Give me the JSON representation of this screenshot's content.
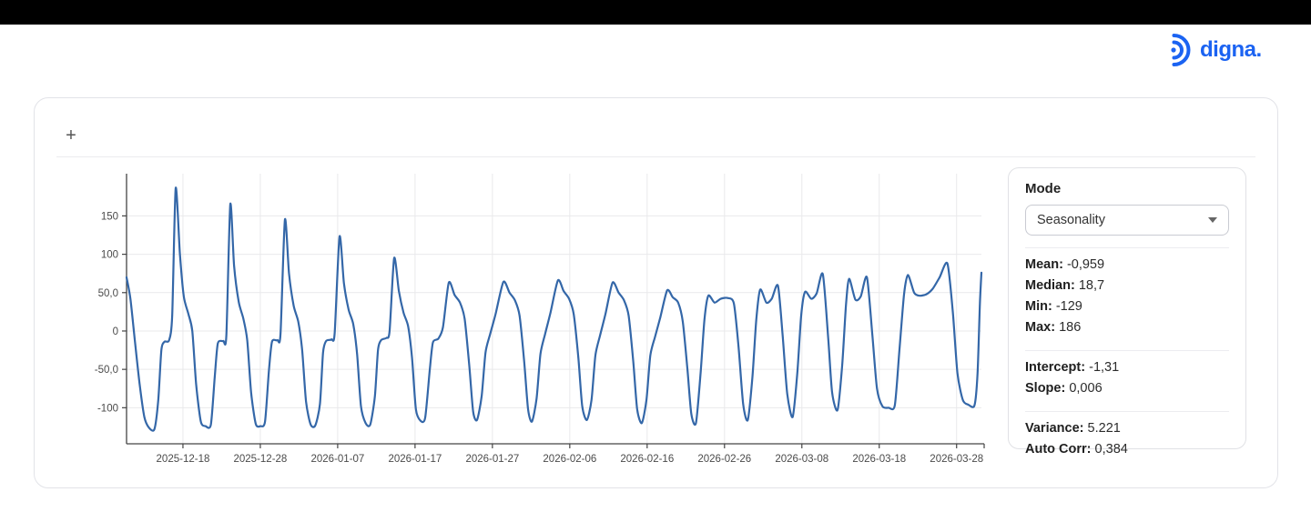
{
  "page": {
    "top_bar_color": "#000000",
    "background": "#ffffff"
  },
  "brand": {
    "name": "digna.",
    "color": "#1b63f2",
    "icon": "ripple-arcs-icon"
  },
  "card": {
    "expand_button_label": "+"
  },
  "panel": {
    "mode_label": "Mode",
    "mode_select_value": "Seasonality",
    "stats_groups": [
      [
        {
          "label": "Mean:",
          "value": "-0,959"
        },
        {
          "label": "Median:",
          "value": "18,7"
        },
        {
          "label": "Min:",
          "value": "-129"
        },
        {
          "label": "Max:",
          "value": "186"
        }
      ],
      [
        {
          "label": "Intercept:",
          "value": "-1,31"
        },
        {
          "label": "Slope:",
          "value": "0,006"
        }
      ],
      [
        {
          "label": "Variance:",
          "value": "5.221"
        },
        {
          "label": "Auto Corr:",
          "value": "0,384"
        }
      ]
    ]
  },
  "chart_data": {
    "type": "line",
    "title": "",
    "xlabel": "",
    "ylabel": "",
    "legend": "none",
    "grid": true,
    "line_color": "#3467a8",
    "axis_color": "#444444",
    "grid_color": "#e9e9eb",
    "tick_label_color": "#4a4a4a",
    "x_unit": "days from plot start (≈ 2025-12-11), daily series with weekly seasonality",
    "x_range": [
      0,
      110.5
    ],
    "y_range": [
      -147,
      205
    ],
    "x_ticks": [
      {
        "t": 7.29,
        "label": "2025-12-18"
      },
      {
        "t": 17.29,
        "label": "2025-12-28"
      },
      {
        "t": 27.29,
        "label": "2026-01-07"
      },
      {
        "t": 37.29,
        "label": "2026-01-17"
      },
      {
        "t": 47.29,
        "label": "2026-01-27"
      },
      {
        "t": 57.29,
        "label": "2026-02-06"
      },
      {
        "t": 67.29,
        "label": "2026-02-16"
      },
      {
        "t": 77.29,
        "label": "2026-02-26"
      },
      {
        "t": 87.29,
        "label": "2026-03-08"
      },
      {
        "t": 97.29,
        "label": "2026-03-18"
      },
      {
        "t": 107.29,
        "label": "2026-03-28"
      }
    ],
    "y_ticks": [
      {
        "v": 150,
        "label": "150"
      },
      {
        "v": 100,
        "label": "100"
      },
      {
        "v": 50,
        "label": "50,0"
      },
      {
        "v": 0,
        "label": "0"
      },
      {
        "v": -50,
        "label": "-50,0"
      },
      {
        "v": -100,
        "label": "-100"
      }
    ],
    "series": [
      {
        "name": "seasonality",
        "points": [
          [
            0,
            70
          ],
          [
            0.5,
            42
          ],
          [
            1.1,
            -15
          ],
          [
            1.7,
            -70
          ],
          [
            2.3,
            -112
          ],
          [
            2.9,
            -126
          ],
          [
            3.6,
            -128
          ],
          [
            4.1,
            -90
          ],
          [
            4.5,
            -25
          ],
          [
            4.9,
            -14
          ],
          [
            5.5,
            -12
          ],
          [
            5.9,
            20
          ],
          [
            6.35,
            186
          ],
          [
            6.9,
            100
          ],
          [
            7.4,
            45
          ],
          [
            8.0,
            22
          ],
          [
            8.5,
            0
          ],
          [
            9.0,
            -70
          ],
          [
            9.6,
            -118
          ],
          [
            10.2,
            -124
          ],
          [
            10.9,
            -122
          ],
          [
            11.4,
            -60
          ],
          [
            11.8,
            -16
          ],
          [
            12.5,
            -13
          ],
          [
            12.9,
            -6
          ],
          [
            13.41,
            165
          ],
          [
            13.9,
            85
          ],
          [
            14.5,
            38
          ],
          [
            15.1,
            16
          ],
          [
            15.6,
            -12
          ],
          [
            16.1,
            -80
          ],
          [
            16.7,
            -121
          ],
          [
            17.3,
            -124
          ],
          [
            17.9,
            -118
          ],
          [
            18.4,
            -52
          ],
          [
            18.8,
            -14
          ],
          [
            19.5,
            -12
          ],
          [
            19.9,
            -4
          ],
          [
            20.47,
            145
          ],
          [
            21.0,
            75
          ],
          [
            21.6,
            33
          ],
          [
            22.2,
            12
          ],
          [
            22.7,
            -25
          ],
          [
            23.2,
            -92
          ],
          [
            23.8,
            -122
          ],
          [
            24.4,
            -123
          ],
          [
            25.0,
            -95
          ],
          [
            25.4,
            -28
          ],
          [
            25.8,
            -13
          ],
          [
            26.5,
            -11
          ],
          [
            26.9,
            -3
          ],
          [
            27.53,
            123
          ],
          [
            28.1,
            62
          ],
          [
            28.7,
            28
          ],
          [
            29.3,
            9
          ],
          [
            29.8,
            -30
          ],
          [
            30.3,
            -98
          ],
          [
            30.9,
            -120
          ],
          [
            31.5,
            -122
          ],
          [
            32.1,
            -85
          ],
          [
            32.5,
            -25
          ],
          [
            32.9,
            -12
          ],
          [
            33.6,
            -9
          ],
          [
            34.0,
            0
          ],
          [
            34.59,
            95
          ],
          [
            35.2,
            52
          ],
          [
            35.8,
            24
          ],
          [
            36.4,
            6
          ],
          [
            36.9,
            -35
          ],
          [
            37.4,
            -102
          ],
          [
            38.0,
            -117
          ],
          [
            38.6,
            -113
          ],
          [
            39.2,
            -50
          ],
          [
            39.6,
            -15
          ],
          [
            40.3,
            -10
          ],
          [
            40.9,
            5
          ],
          [
            41.65,
            63
          ],
          [
            42.4,
            47
          ],
          [
            43.1,
            37
          ],
          [
            43.7,
            16
          ],
          [
            44.3,
            -45
          ],
          [
            44.8,
            -105
          ],
          [
            45.3,
            -116
          ],
          [
            45.9,
            -85
          ],
          [
            46.4,
            -28
          ],
          [
            47.0,
            -4
          ],
          [
            47.7,
            22
          ],
          [
            48.71,
            64
          ],
          [
            49.5,
            50
          ],
          [
            50.2,
            40
          ],
          [
            50.8,
            20
          ],
          [
            51.4,
            -40
          ],
          [
            51.9,
            -102
          ],
          [
            52.4,
            -118
          ],
          [
            53.0,
            -88
          ],
          [
            53.5,
            -30
          ],
          [
            54.1,
            -4
          ],
          [
            54.8,
            24
          ],
          [
            55.76,
            66
          ],
          [
            56.5,
            52
          ],
          [
            57.2,
            42
          ],
          [
            57.8,
            22
          ],
          [
            58.4,
            -35
          ],
          [
            58.9,
            -98
          ],
          [
            59.5,
            -116
          ],
          [
            60.1,
            -90
          ],
          [
            60.6,
            -32
          ],
          [
            61.2,
            -6
          ],
          [
            61.9,
            22
          ],
          [
            62.82,
            63
          ],
          [
            63.6,
            50
          ],
          [
            64.3,
            40
          ],
          [
            64.9,
            20
          ],
          [
            65.5,
            -40
          ],
          [
            66.0,
            -102
          ],
          [
            66.6,
            -120
          ],
          [
            67.2,
            -90
          ],
          [
            67.7,
            -32
          ],
          [
            68.3,
            -8
          ],
          [
            69.0,
            18
          ],
          [
            69.88,
            53
          ],
          [
            70.6,
            44
          ],
          [
            71.3,
            37
          ],
          [
            71.9,
            12
          ],
          [
            72.5,
            -50
          ],
          [
            73.0,
            -108
          ],
          [
            73.6,
            -120
          ],
          [
            74.2,
            -55
          ],
          [
            74.7,
            15
          ],
          [
            75.2,
            46
          ],
          [
            76.0,
            37
          ],
          [
            76.8,
            42
          ],
          [
            77.7,
            43
          ],
          [
            78.5,
            36
          ],
          [
            79.1,
            -20
          ],
          [
            79.7,
            -95
          ],
          [
            80.3,
            -116
          ],
          [
            80.9,
            -60
          ],
          [
            81.4,
            15
          ],
          [
            81.9,
            54
          ],
          [
            82.7,
            37
          ],
          [
            83.4,
            42
          ],
          [
            84.2,
            59
          ],
          [
            84.8,
            -5
          ],
          [
            85.4,
            -82
          ],
          [
            86.1,
            -112
          ],
          [
            86.7,
            -55
          ],
          [
            87.2,
            20
          ],
          [
            87.7,
            51
          ],
          [
            88.5,
            42
          ],
          [
            89.2,
            49
          ],
          [
            90.0,
            74
          ],
          [
            90.7,
            -10
          ],
          [
            91.2,
            -80
          ],
          [
            91.9,
            -103
          ],
          [
            92.5,
            -45
          ],
          [
            93.0,
            35
          ],
          [
            93.4,
            68
          ],
          [
            94.2,
            41
          ],
          [
            94.9,
            45
          ],
          [
            95.7,
            70
          ],
          [
            96.4,
            -5
          ],
          [
            97.0,
            -75
          ],
          [
            97.7,
            -98
          ],
          [
            98.5,
            -100
          ],
          [
            99.3,
            -97
          ],
          [
            99.9,
            -25
          ],
          [
            100.5,
            48
          ],
          [
            101.0,
            73
          ],
          [
            101.8,
            50
          ],
          [
            102.5,
            46
          ],
          [
            103.4,
            48
          ],
          [
            104.2,
            55
          ],
          [
            105.1,
            70
          ],
          [
            106.1,
            88
          ],
          [
            106.8,
            25
          ],
          [
            107.4,
            -55
          ],
          [
            108.1,
            -90
          ],
          [
            108.8,
            -96
          ],
          [
            109.6,
            -97
          ],
          [
            110.0,
            -55
          ],
          [
            110.3,
            35
          ],
          [
            110.5,
            76
          ]
        ]
      }
    ]
  }
}
